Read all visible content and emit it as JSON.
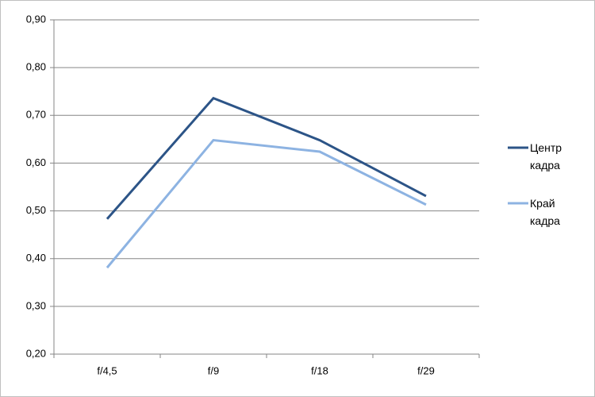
{
  "chart_data": {
    "type": "line",
    "categories": [
      "f/4,5",
      "f/9",
      "f/18",
      "f/29"
    ],
    "series": [
      {
        "name": "Центр кадра",
        "color": "#2c5487",
        "values": [
          0.483,
          0.736,
          0.648,
          0.531
        ]
      },
      {
        "name": "Край кадра",
        "color": "#8db3e2",
        "values": [
          0.381,
          0.648,
          0.624,
          0.513
        ]
      }
    ],
    "ylim": [
      0.2,
      0.9
    ],
    "yticks": [
      {
        "value": 0.2,
        "label": "0,20"
      },
      {
        "value": 0.3,
        "label": "0,30"
      },
      {
        "value": 0.4,
        "label": "0,40"
      },
      {
        "value": 0.5,
        "label": "0,50"
      },
      {
        "value": 0.6,
        "label": "0,60"
      },
      {
        "value": 0.7,
        "label": "0,70"
      },
      {
        "value": 0.8,
        "label": "0,80"
      },
      {
        "value": 0.9,
        "label": "0,90"
      }
    ],
    "grid": true,
    "legend": "right"
  }
}
